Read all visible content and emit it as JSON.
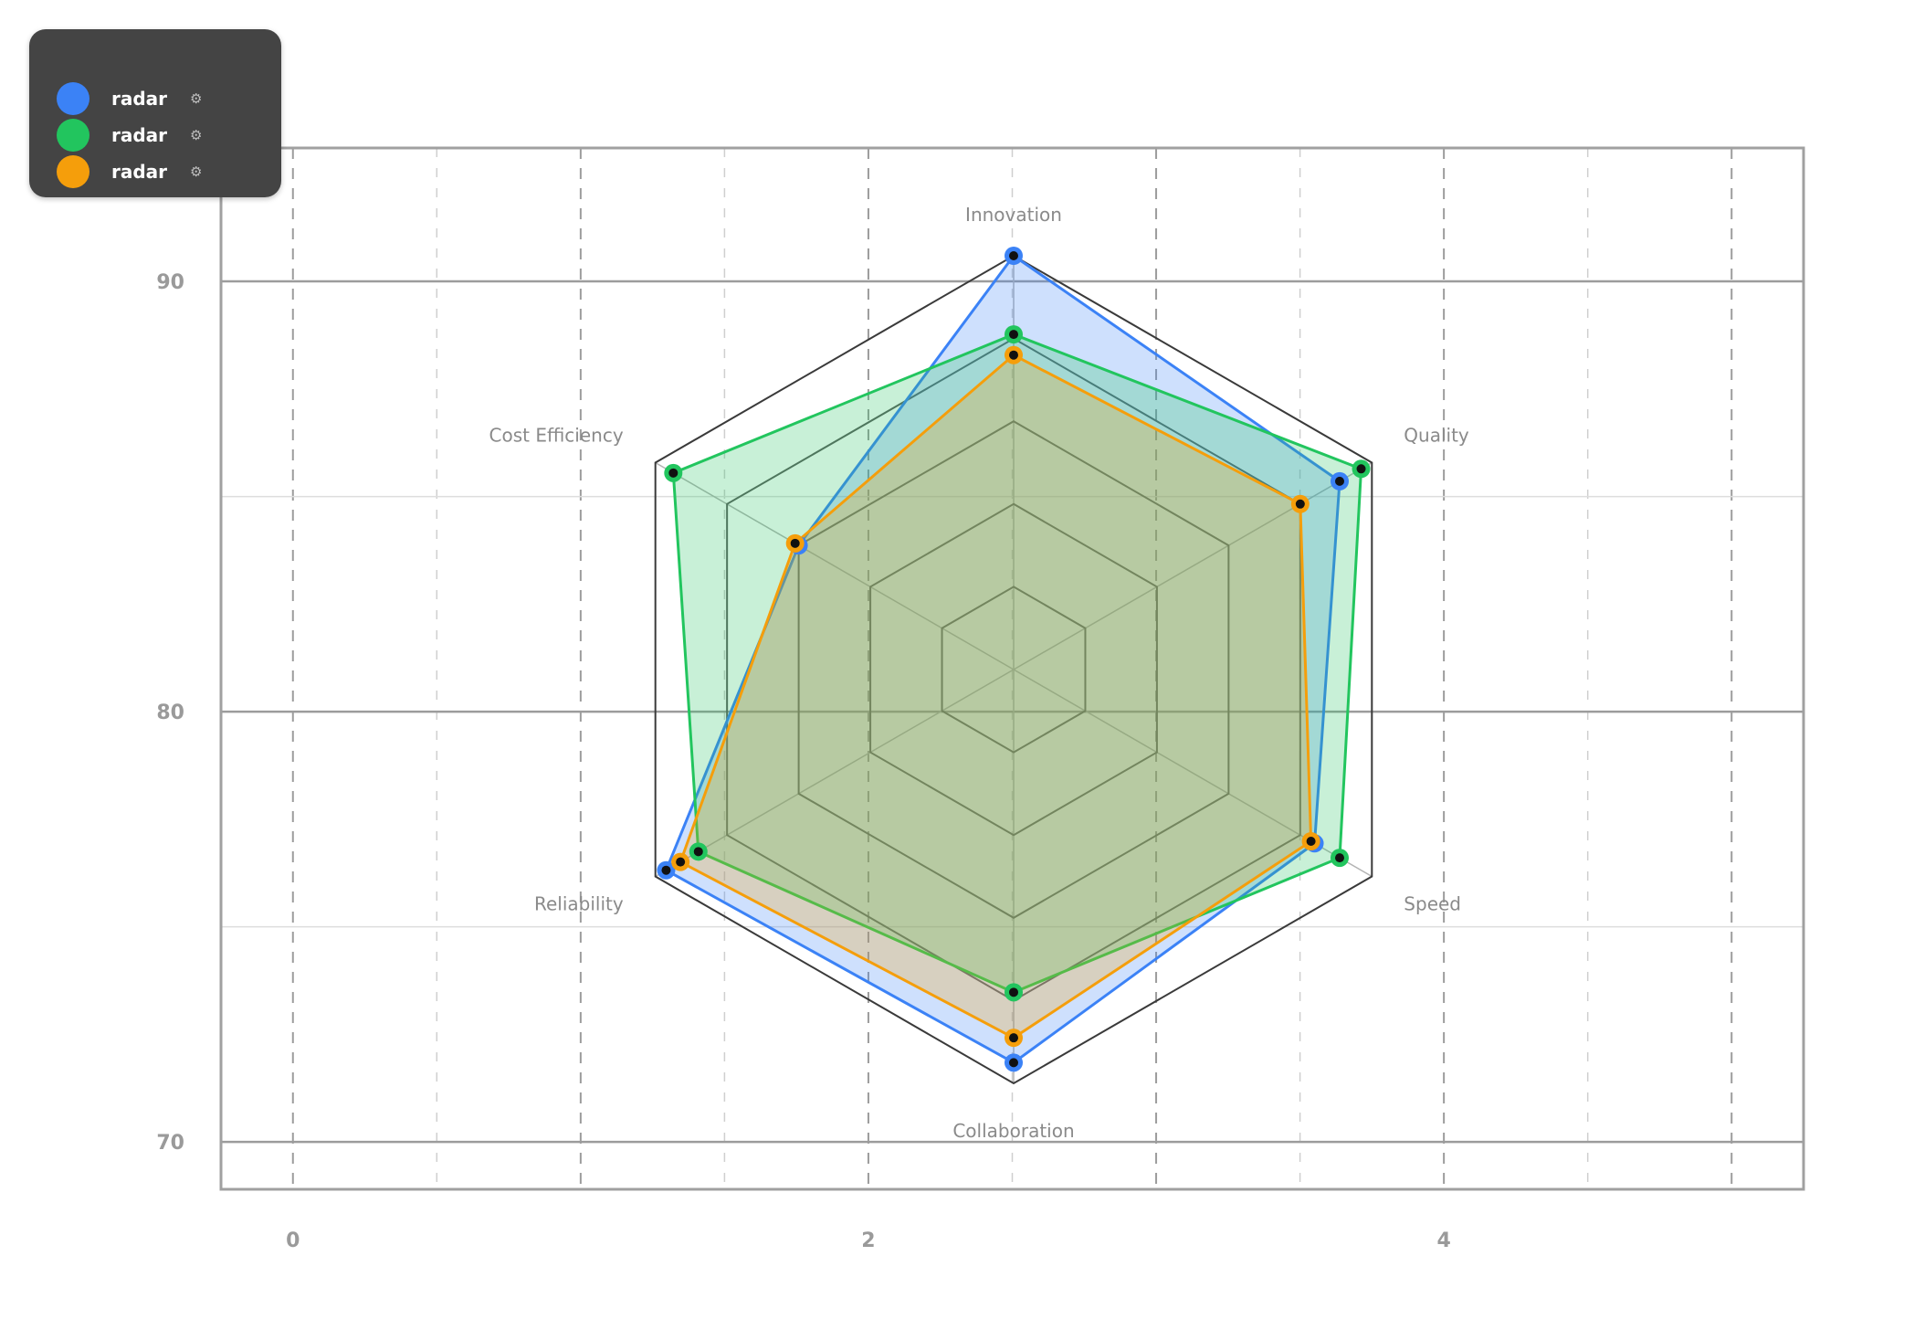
{
  "chart_data": {
    "type": "radar",
    "axes": [
      "Innovation",
      "Quality",
      "Speed",
      "Collaboration",
      "Reliability",
      "Cost Efficiency"
    ],
    "rmax": 100,
    "series": [
      {
        "name": "radar",
        "color": "#3b82f6",
        "values": [
          100,
          91,
          84,
          95,
          97,
          60
        ]
      },
      {
        "name": "radar",
        "color": "#22c55e",
        "values": [
          81,
          97,
          91,
          78,
          88,
          95
        ]
      },
      {
        "name": "radar",
        "color": "#f59e0b",
        "values": [
          76,
          80,
          83,
          89,
          93,
          61
        ]
      }
    ],
    "grid_rings": [
      20,
      40,
      60,
      80,
      100
    ],
    "x_axis": {
      "ticks": [
        0,
        2,
        4
      ],
      "range": [
        -0.25,
        5.25
      ]
    },
    "y_axis": {
      "ticks": [
        70,
        80,
        90
      ],
      "range": [
        68.9,
        93.1
      ]
    },
    "grid": true,
    "legend": "top-left"
  },
  "legend": {
    "items": [
      {
        "label": "radar",
        "color": "#3b82f6",
        "icon": "gear-icon",
        "glyph": "⚙"
      },
      {
        "label": "radar",
        "color": "#22c55e",
        "icon": "gear-icon",
        "glyph": "⚙"
      },
      {
        "label": "radar",
        "color": "#f59e0b",
        "icon": "gear-icon",
        "glyph": "⚙"
      }
    ]
  }
}
